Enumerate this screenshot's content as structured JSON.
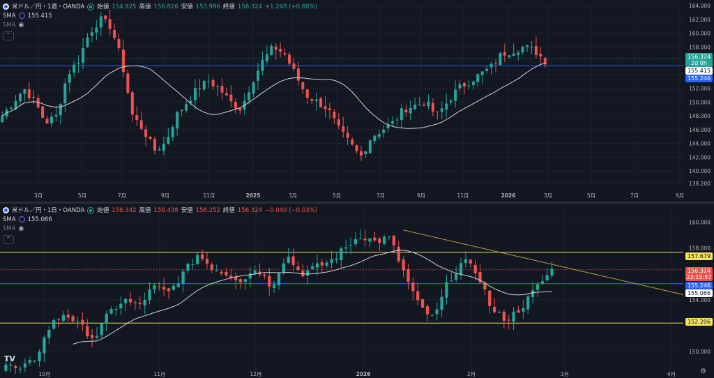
{
  "top": {
    "title": "米ドル／円・1週・OANDA",
    "ohlc": {
      "o_label": "始値",
      "o": "154.925",
      "h_label": "高値",
      "h": "156.826",
      "l_label": "安値",
      "l": "153.996",
      "c_label": "終値",
      "c": "156.324",
      "change": "+1.248 (+0.80%)"
    },
    "sma1_label": "SMA",
    "sma1_value": "155.415",
    "sma2_label": "SMA",
    "y_ticks": [
      "164.000",
      "162.000",
      "160.000",
      "158.000",
      "156.000",
      "154.000",
      "152.000",
      "150.000",
      "148.000",
      "146.000",
      "144.000",
      "142.000",
      "140.000",
      "138.200"
    ],
    "x_ticks": [
      "3月",
      "5月",
      "7月",
      "9月",
      "11月",
      "2025",
      "3月",
      "5月",
      "7月",
      "9月",
      "11月",
      "2026",
      "3月",
      "5月",
      "7月",
      "9月"
    ],
    "tags": {
      "last": "156.324",
      "countdown": "2d 0h",
      "sma": "155.415",
      "hline": "155.246"
    }
  },
  "bottom": {
    "title": "米ドル／円・1日・OANDA",
    "ohlc": {
      "o_label": "始値",
      "o": "156.342",
      "h_label": "高値",
      "h": "156.438",
      "l_label": "安値",
      "l": "156.252",
      "c_label": "終値",
      "c": "156.324",
      "change": "−0.040 (−0.03%)"
    },
    "sma1_label": "SMA",
    "sma1_value": "155.066",
    "sma2_label": "SMA",
    "y_ticks": [
      "160.000",
      "158.000",
      "154.000",
      "150.000"
    ],
    "x_ticks": [
      "10月",
      "11月",
      "12月",
      "2026",
      "2月",
      "3月",
      "4月"
    ],
    "tags": {
      "resistance": "157.679",
      "last": "156.324",
      "countdown": "23:15:57",
      "hline": "155.246",
      "sma": "155.066",
      "support": "152.206"
    }
  },
  "colors": {
    "bg": "#131722",
    "up": "#26a69a",
    "down": "#ef5350",
    "sma": "#d1d4dc",
    "hline": "#2962ff",
    "level": "#f7e35c",
    "trend": "#b8a040"
  },
  "icons": {
    "logo": "tradingview-logo-icon",
    "settings": "gear-icon",
    "eye": "eye-icon",
    "collapse": "chevron-up-icon"
  },
  "footer": {
    "logo_text": "TV",
    "settings_glyph": "⚙"
  },
  "glyphs": {
    "eye": "◉",
    "chevron": "⌃"
  }
}
